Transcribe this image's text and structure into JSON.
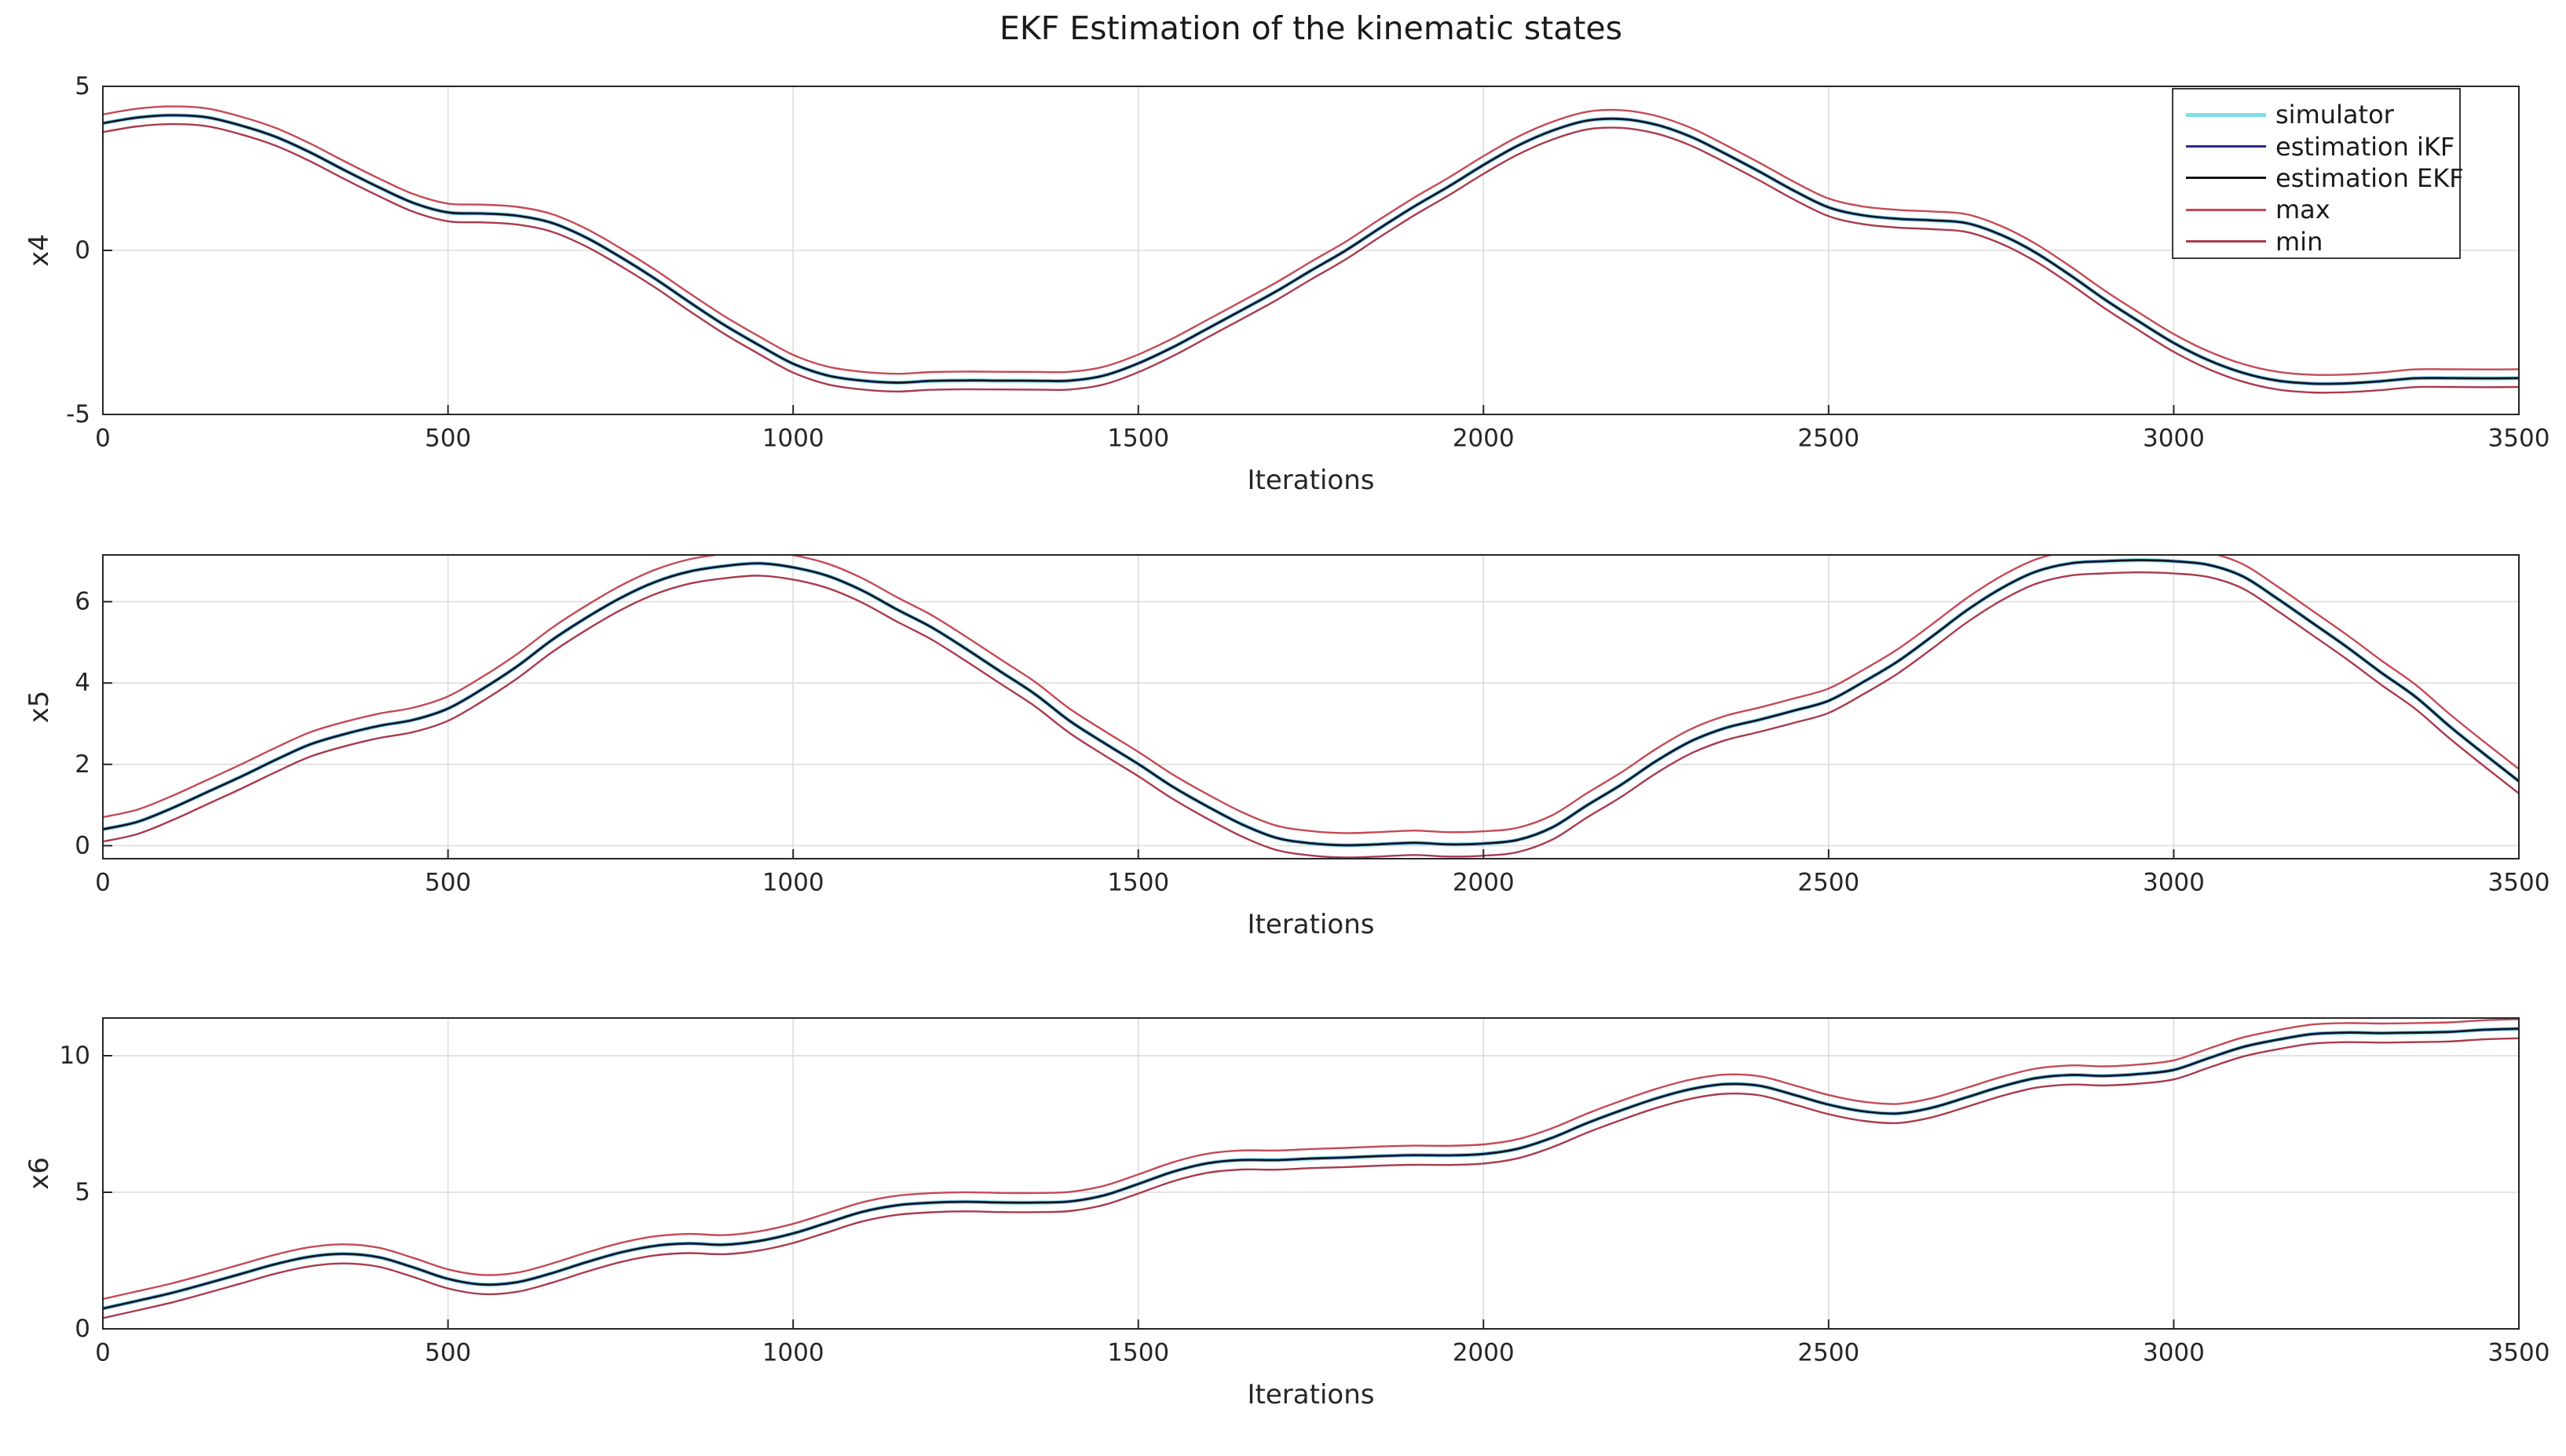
{
  "title": "EKF Estimation of the kinematic states",
  "background_color": "#ffffff",
  "axis_color": "#262626",
  "grid_color": "#dcdcdc",
  "legend": {
    "position": "top-right-of-first-subplot",
    "items": [
      {
        "label": "simulator",
        "color": "#7fdfe6",
        "sample_thickness": 5
      },
      {
        "label": "estimation iKF",
        "color": "#2a2a85",
        "sample_thickness": 3
      },
      {
        "label": "estimation EKF",
        "color": "#141414",
        "sample_thickness": 3
      },
      {
        "label": "max",
        "color": "#c44a55",
        "sample_thickness": 3
      },
      {
        "label": "min",
        "color": "#a83b4e",
        "sample_thickness": 3
      }
    ]
  },
  "series_styles": [
    {
      "name": "simulator",
      "color": "#7fdfe6",
      "width": 5,
      "role": "center"
    },
    {
      "name": "estimation iKF",
      "color": "#2a2a85",
      "width": 3,
      "role": "center"
    },
    {
      "name": "estimation EKF",
      "color": "#141414",
      "width": 2,
      "role": "center"
    },
    {
      "name": "max",
      "color": "#c44a55",
      "width": 2.4,
      "role": "upper"
    },
    {
      "name": "min",
      "color": "#a83b4e",
      "width": 2.4,
      "role": "lower"
    }
  ],
  "chart_data": [
    {
      "type": "line",
      "ylabel": "x4",
      "xlabel": "Iterations",
      "xlim": [
        0,
        3500
      ],
      "ylim": [
        -5,
        5
      ],
      "xticks": [
        0,
        500,
        1000,
        1500,
        2000,
        2500,
        3000,
        3500
      ],
      "yticks": [
        -5,
        0,
        5
      ],
      "grid": true,
      "x_start": 0,
      "x_step": 50,
      "note": "simulator, estimation iKF and estimation EKF overlap on the center curve; max/min = center ± band",
      "band": 0.27,
      "center": [
        3.85,
        4.02,
        4.1,
        4.05,
        3.85,
        3.5,
        3.0,
        2.45,
        1.9,
        1.45,
        1.18,
        1.12,
        1.05,
        0.8,
        0.35,
        -0.2,
        -0.85,
        -1.55,
        -2.25,
        -2.9,
        -3.45,
        -3.8,
        -3.95,
        -4.0,
        -4.0,
        -4.0,
        -4.0,
        -4.0,
        -3.95,
        -3.8,
        -3.45,
        -2.95,
        -2.4,
        -1.8,
        -1.2,
        -0.6,
        0.0,
        0.65,
        1.3,
        1.95,
        2.6,
        3.2,
        3.65,
        3.92,
        4.0,
        3.85,
        3.5,
        3.0,
        2.4,
        1.8,
        1.3,
        1.05,
        0.98,
        0.92,
        0.8,
        0.45,
        -0.1,
        -0.75,
        -1.45,
        -2.15,
        -2.8,
        -3.35,
        -3.75,
        -3.95,
        -4.05,
        -4.05,
        -4.0,
        -3.95,
        -3.92,
        -3.9,
        -3.88
      ]
    },
    {
      "type": "line",
      "ylabel": "x5",
      "xlabel": "Iterations",
      "xlim": [
        0,
        3500
      ],
      "ylim": [
        -0.32,
        7.15
      ],
      "xticks": [
        0,
        500,
        1000,
        1500,
        2000,
        2500,
        3000,
        3500
      ],
      "yticks": [
        0,
        2,
        4,
        6
      ],
      "grid": true,
      "x_start": 0,
      "x_step": 50,
      "note": "simulator, estimation iKF and estimation EKF overlap on the center curve; max/min = center ± band",
      "band": 0.3,
      "center": [
        0.37,
        0.55,
        0.9,
        1.3,
        1.75,
        2.15,
        2.5,
        2.75,
        2.92,
        3.1,
        3.4,
        3.85,
        4.4,
        5.0,
        5.55,
        6.1,
        6.5,
        6.78,
        6.9,
        6.92,
        6.85,
        6.65,
        6.3,
        5.85,
        5.35,
        4.8,
        4.25,
        3.7,
        3.1,
        2.55,
        2.0,
        1.45,
        0.95,
        0.55,
        0.25,
        0.08,
        0.02,
        0.0,
        0.02,
        0.03,
        0.05,
        0.15,
        0.45,
        0.95,
        1.5,
        2.1,
        2.6,
        2.95,
        3.1,
        3.3,
        3.55,
        4.0,
        4.55,
        5.15,
        5.75,
        6.3,
        6.7,
        6.95,
        7.05,
        7.05,
        7.02,
        6.9,
        6.6,
        6.1,
        5.5,
        4.9,
        4.25,
        3.6,
        2.9,
        2.25,
        1.6
      ]
    },
    {
      "type": "line",
      "ylabel": "x6",
      "xlabel": "Iterations",
      "xlim": [
        0,
        3500
      ],
      "ylim": [
        0,
        11.38
      ],
      "xticks": [
        0,
        500,
        1000,
        1500,
        2000,
        2500,
        3000,
        3500
      ],
      "yticks": [
        0,
        5,
        10
      ],
      "grid": true,
      "x_start": 0,
      "x_step": 50,
      "note": "simulator, estimation iKF and estimation EKF overlap on the center curve; max/min = center ± band",
      "band": 0.35,
      "center": [
        0.72,
        1.0,
        1.3,
        1.65,
        2.05,
        2.4,
        2.65,
        2.75,
        2.6,
        2.25,
        1.85,
        1.62,
        1.7,
        2.0,
        2.4,
        2.8,
        3.05,
        3.15,
        3.1,
        3.2,
        3.5,
        3.9,
        4.3,
        4.55,
        4.6,
        4.62,
        4.6,
        4.6,
        4.68,
        4.9,
        5.3,
        5.75,
        6.05,
        6.2,
        6.22,
        6.25,
        6.28,
        6.3,
        6.32,
        6.35,
        6.4,
        6.6,
        7.0,
        7.5,
        8.0,
        8.45,
        8.8,
        9.0,
        8.9,
        8.55,
        8.2,
        7.95,
        7.9,
        8.1,
        8.45,
        8.85,
        9.15,
        9.3,
        9.3,
        9.35,
        9.5,
        9.9,
        10.3,
        10.6,
        10.8,
        10.85,
        10.82,
        10.8,
        10.85,
        10.95,
        11.0
      ]
    }
  ]
}
